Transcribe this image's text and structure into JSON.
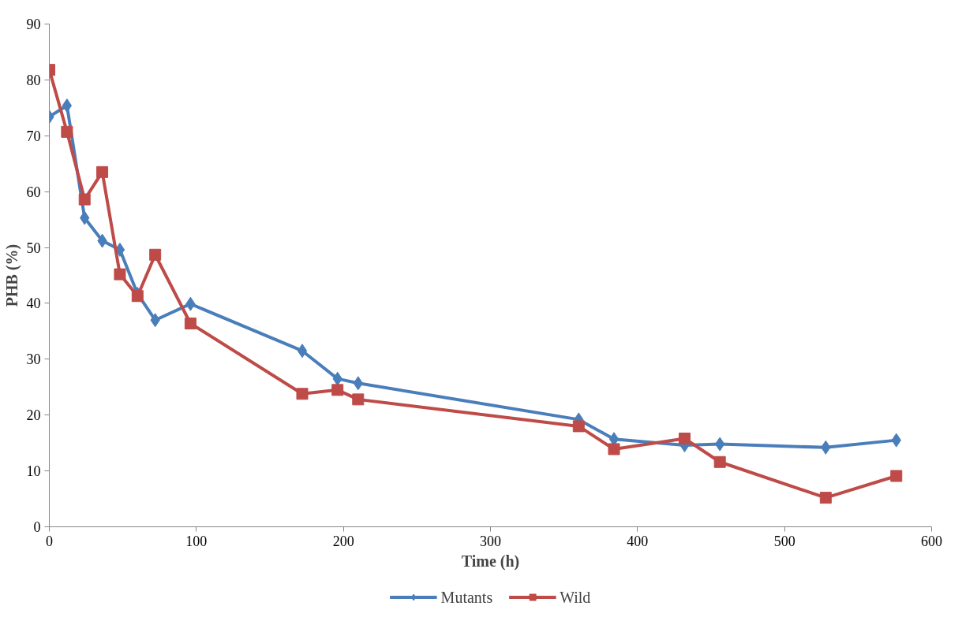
{
  "chart_data": {
    "type": "line",
    "xlabel": "Time (h)",
    "ylabel": "PHB (%)",
    "xlim": [
      0,
      600
    ],
    "xticks": [
      0,
      100,
      200,
      300,
      400,
      500,
      600
    ],
    "ylim": [
      0,
      90
    ],
    "yticks": [
      0,
      10,
      20,
      30,
      40,
      50,
      60,
      70,
      80,
      90
    ],
    "grid": false,
    "legend": "bottom",
    "line_style": "solid",
    "series": [
      {
        "name": "Mutants",
        "color": "#4a7ebb",
        "marker": "diamond",
        "x": [
          0,
          12,
          24,
          36,
          48,
          60,
          72,
          96,
          172,
          196,
          210,
          360,
          384,
          432,
          456,
          528,
          576
        ],
        "values": [
          73.4,
          75.4,
          55.3,
          51.2,
          49.6,
          41.7,
          37.0,
          39.9,
          31.5,
          26.5,
          25.7,
          19.2,
          15.7,
          14.6,
          14.8,
          14.2,
          15.5
        ]
      },
      {
        "name": "Wild",
        "color": "#be4b48",
        "marker": "square",
        "x": [
          0,
          12,
          24,
          36,
          48,
          60,
          72,
          96,
          172,
          196,
          210,
          360,
          384,
          432,
          456,
          528,
          576
        ],
        "values": [
          81.8,
          70.7,
          58.6,
          63.5,
          45.2,
          41.3,
          48.7,
          36.4,
          23.8,
          24.5,
          22.8,
          18.0,
          13.9,
          15.8,
          11.6,
          5.2,
          9.1
        ]
      }
    ]
  }
}
